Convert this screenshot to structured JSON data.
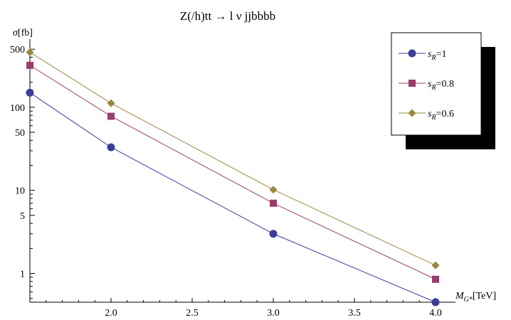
{
  "chart_data": {
    "type": "line",
    "title": "Z(/h)tt → l ν jjbbbb",
    "ylabel": {
      "sym": "σ",
      "unit": "[fb]"
    },
    "xlabel": {
      "sym": "M",
      "sub": "G*",
      "unit": "[TeV]"
    },
    "y_scale": "log",
    "xlim": [
      1.5,
      4.0
    ],
    "ylim": [
      0.45,
      600
    ],
    "x_ticks": [
      "2.0",
      "2.5",
      "3.0",
      "3.5",
      "4.0"
    ],
    "y_ticks": [
      "500",
      "100",
      "50",
      "10",
      "5",
      "1"
    ],
    "x": [
      1.5,
      2.0,
      3.0,
      4.0
    ],
    "series": [
      {
        "name_sym": "s",
        "name_sub": "R",
        "name_val": "=1",
        "color": "#3d3d99",
        "marker": "circle",
        "values": [
          150,
          33,
          3.0,
          0.45
        ]
      },
      {
        "name_sym": "s",
        "name_sub": "R",
        "name_val": "=0.8",
        "color": "#993d6b",
        "marker": "square",
        "values": [
          320,
          78,
          7.0,
          0.85
        ]
      },
      {
        "name_sym": "s",
        "name_sub": "R",
        "name_val": "=0.6",
        "color": "#99873d",
        "marker": "diamond",
        "values": [
          460,
          112,
          10.2,
          1.25
        ]
      }
    ],
    "legend_position": "top-right",
    "grid": false
  }
}
